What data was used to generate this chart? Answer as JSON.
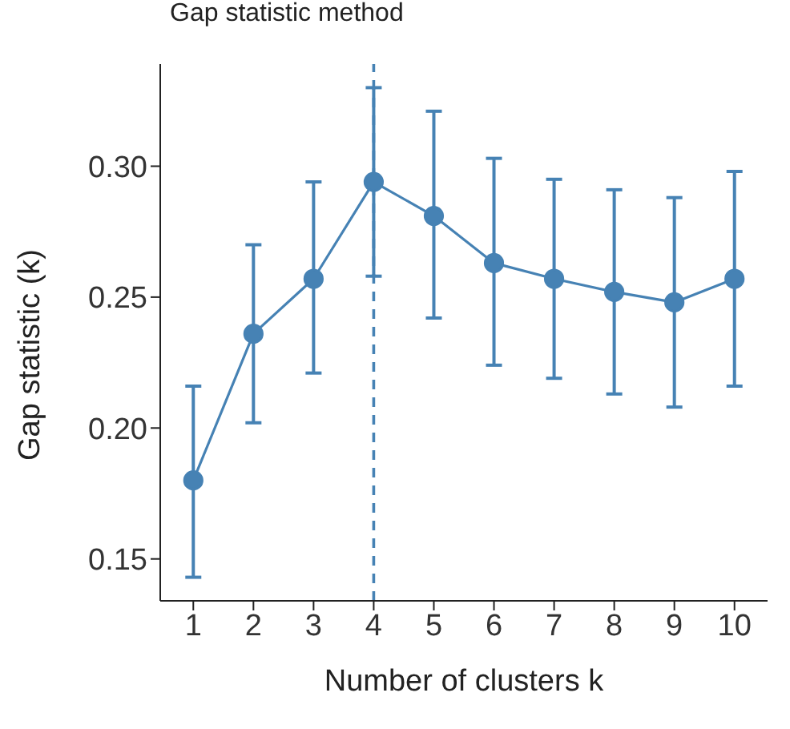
{
  "chart_data": {
    "type": "line",
    "title": "Gap statistic method",
    "xlabel": "Number of clusters k",
    "ylabel": "Gap statistic (k)",
    "categories": [
      "1",
      "2",
      "3",
      "4",
      "5",
      "6",
      "7",
      "8",
      "9",
      "10"
    ],
    "series": [
      {
        "color": "#4682b4",
        "values": [
          0.18,
          0.236,
          0.257,
          0.294,
          0.281,
          0.263,
          0.257,
          0.252,
          0.248,
          0.257
        ],
        "errors": [
          [
            0.143,
            0.216
          ],
          [
            0.202,
            0.27
          ],
          [
            0.221,
            0.294
          ],
          [
            0.258,
            0.33
          ],
          [
            0.242,
            0.321
          ],
          [
            0.224,
            0.303
          ],
          [
            0.219,
            0.295
          ],
          [
            0.213,
            0.291
          ],
          [
            0.208,
            0.288
          ],
          [
            0.216,
            0.298
          ]
        ]
      }
    ],
    "ylim": [
      0.134,
      0.339
    ],
    "yticks": [
      {
        "value": 0.15,
        "label": "0.15"
      },
      {
        "value": 0.2,
        "label": "0.20"
      },
      {
        "value": 0.25,
        "label": "0.25"
      },
      {
        "value": 0.3,
        "label": "0.30"
      }
    ],
    "ref_lines": [
      {
        "axis": "x",
        "value": "4",
        "color": "#4682b4",
        "line_style": "dashed"
      }
    ],
    "grid": false,
    "legend": false,
    "marker": "circle",
    "line_style": "solid"
  }
}
